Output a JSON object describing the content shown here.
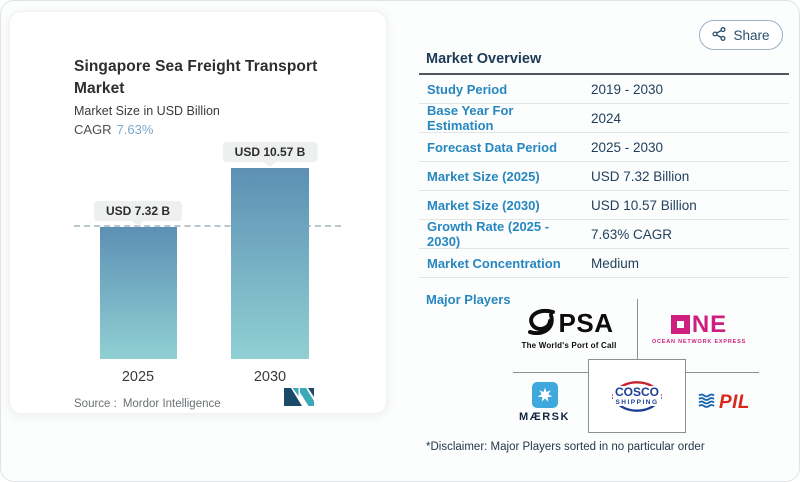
{
  "header": {
    "share_label": "Share"
  },
  "chart_card": {
    "title": "Singapore Sea Freight Transport Market",
    "subtitle": "Market Size in USD Billion",
    "cagr_label": "CAGR",
    "cagr_value": "7.63%",
    "source_label": "Source :",
    "source_value": "Mordor Intelligence"
  },
  "chart_data": {
    "type": "bar",
    "title": "Singapore Sea Freight Transport Market",
    "ylabel": "Market Size in USD Billion",
    "categories": [
      "2025",
      "2030"
    ],
    "values": [
      7.32,
      10.57
    ],
    "value_labels": [
      "USD 7.32 B",
      "USD 10.57 B"
    ],
    "unit": "USD Billion",
    "cagr_percent": 7.63,
    "ylim": [
      0,
      10.57
    ],
    "reference_line_at": 7.32,
    "grid": false,
    "legend": false,
    "bar_gradient_top": "#5d90b4",
    "bar_gradient_bottom": "#90d0d3"
  },
  "overview": {
    "heading": "Market Overview",
    "rows": [
      {
        "label": "Study Period",
        "value": "2019 - 2030"
      },
      {
        "label": "Base Year For Estimation",
        "value": "2024"
      },
      {
        "label": "Forecast Data Period",
        "value": "2025 - 2030"
      },
      {
        "label": "Market Size (2025)",
        "value": "USD 7.32 Billion"
      },
      {
        "label": "Market Size (2030)",
        "value": "USD 10.57 Billion"
      },
      {
        "label": "Growth Rate (2025 - 2030)",
        "value": "7.63% CAGR"
      },
      {
        "label": "Market Concentration",
        "value": "Medium"
      }
    ],
    "major_players_label": "Major Players",
    "players": [
      {
        "name": "PSA",
        "tagline": "The World's Port of Call"
      },
      {
        "name": "ONE",
        "name_rest": "NE",
        "tagline": "OCEAN NETWORK EXPRESS"
      },
      {
        "name": "MÆRSK"
      },
      {
        "name_line1": "COSCO",
        "name_line2": "SHIPPING"
      },
      {
        "name": "PIL"
      }
    ],
    "disclaimer": "*Disclaimer: Major Players sorted in no particular order"
  },
  "colors": {
    "label_blue": "#2787c0",
    "navy": "#1d3a56",
    "cagr_blue": "#7ea8c8",
    "one_magenta": "#cf1f7e",
    "maersk_blue": "#3fa9dd",
    "cosco_blue": "#1c3f94",
    "cosco_red": "#c8202f",
    "pil_red": "#d8281c",
    "pil_blue": "#1565ad",
    "mi_navy": "#1b4a68",
    "mi_teal": "#3aa9b8"
  }
}
